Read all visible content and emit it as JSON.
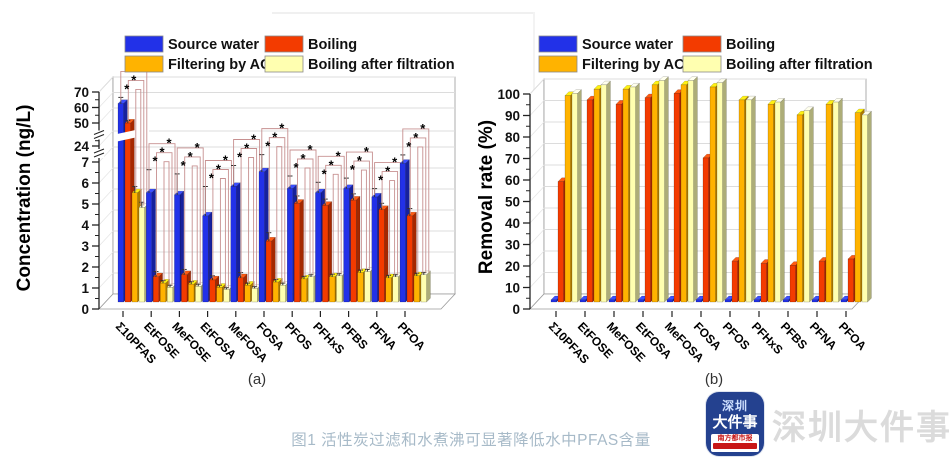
{
  "figure": {
    "caption": "图1  活性炭过滤和水煮沸可显著降低水中PFAS含量",
    "watermark_text": "深圳大件事",
    "logo": {
      "line1": "深圳",
      "line2": "大件事",
      "banner": "南方都市报"
    }
  },
  "legend": {
    "items": [
      {
        "label": "Source water",
        "color": "#2231e8"
      },
      {
        "label": "Boiling",
        "color": "#f33b00"
      },
      {
        "label": "Filtering by AC",
        "color": "#ffb300"
      },
      {
        "label": "Boiling after filtration",
        "color": "#ffffb0"
      }
    ]
  },
  "chart_data": [
    {
      "id": "a",
      "type": "bar",
      "style": "3d-grouped",
      "title": "(a)",
      "ylabel": "Concentration (ng/L)",
      "y_ticks": [
        0,
        1,
        2,
        3,
        4,
        5,
        6,
        7,
        24,
        50,
        60,
        70
      ],
      "axis_breaks": [
        [
          7,
          24
        ],
        [
          24,
          50
        ]
      ],
      "ylim": [
        0,
        70
      ],
      "grid": true,
      "legend_position": "top",
      "significance_symbol": "*",
      "significance_brackets_per_group": 3,
      "categories": [
        "Σ10PFAS",
        "EtFOSE",
        "MeFOSE",
        "EtFOSA",
        "MeFOSA",
        "FOSA",
        "PFOS",
        "PFHxS",
        "PFBS",
        "PFNA",
        "PFOA"
      ],
      "series": [
        {
          "name": "Source water",
          "color": "#2231e8",
          "values": [
            58,
            5.2,
            5.1,
            4.1,
            5.5,
            6.2,
            5.4,
            5.2,
            5.4,
            5.0,
            6.6
          ],
          "errors": [
            4,
            1.1,
            1.0,
            1.4,
            1.0,
            1.2,
            0.6,
            0.5,
            0.5,
            0.4,
            0.5
          ]
        },
        {
          "name": "Boiling",
          "color": "#f33b00",
          "values": [
            42,
            1.2,
            1.3,
            1.05,
            1.15,
            2.9,
            4.7,
            4.6,
            4.85,
            4.4,
            4.1
          ],
          "errors": [
            3,
            0.25,
            0.25,
            0.2,
            0.25,
            0.4,
            0.35,
            0.3,
            0.3,
            0.3,
            0.35
          ]
        },
        {
          "name": "Filtering by AC",
          "color": "#ffb300",
          "values": [
            5.2,
            0.9,
            0.85,
            0.7,
            0.8,
            0.95,
            1.1,
            1.2,
            1.4,
            1.15,
            1.25
          ],
          "errors": [
            0.3,
            0.12,
            0.12,
            0.1,
            0.1,
            0.12,
            0.12,
            0.12,
            0.12,
            0.12,
            0.12
          ]
        },
        {
          "name": "Boiling after filtration",
          "color": "#ffffb0",
          "values": [
            4.5,
            0.7,
            0.75,
            0.6,
            0.65,
            0.8,
            1.2,
            1.25,
            1.45,
            1.2,
            1.3
          ],
          "errors": [
            0.25,
            0.1,
            0.1,
            0.08,
            0.08,
            0.1,
            0.1,
            0.1,
            0.1,
            0.1,
            0.1
          ]
        }
      ]
    },
    {
      "id": "b",
      "type": "bar",
      "style": "3d-grouped",
      "title": "(b)",
      "ylabel": "Removal rate (%)",
      "y_ticks": [
        0,
        10,
        20,
        30,
        40,
        50,
        60,
        70,
        80,
        90,
        100
      ],
      "ylim": [
        0,
        100
      ],
      "grid": true,
      "legend_position": "top",
      "categories": [
        "Σ10PFAS",
        "EtFOSE",
        "MeFOSE",
        "EtFOSA",
        "MeFOSA",
        "FOSA",
        "PFOS",
        "PFHxS",
        "PFBS",
        "PFNA",
        "PFOA"
      ],
      "series": [
        {
          "name": "Source water",
          "color": "#2231e8",
          "values": [
            1,
            1,
            1,
            1,
            1,
            1,
            1,
            1,
            1,
            1,
            1
          ]
        },
        {
          "name": "Boiling",
          "color": "#f33b00",
          "values": [
            56,
            94,
            92,
            95,
            97,
            67,
            19,
            18,
            17,
            19,
            20
          ]
        },
        {
          "name": "Filtering by AC",
          "color": "#ffb300",
          "values": [
            96,
            99,
            99,
            101,
            101,
            100,
            94,
            92,
            87,
            92,
            88
          ]
        },
        {
          "name": "Boiling after filtration",
          "color": "#ffffb0",
          "values": [
            97,
            101,
            100,
            103,
            103,
            102,
            94,
            93,
            89,
            93,
            87
          ]
        }
      ]
    }
  ]
}
